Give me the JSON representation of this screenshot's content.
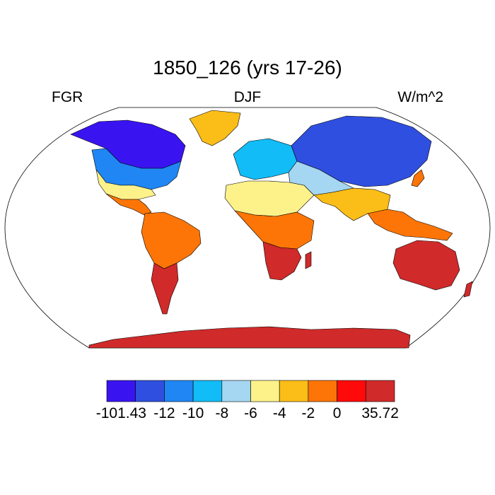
{
  "title": "1850_126 (yrs 17-26)",
  "left_label": "FGR",
  "center_label": "DJF",
  "right_label": "W/m^2",
  "colorbar": {
    "colors": [
      "#3a14f0",
      "#2f4fe0",
      "#1f86f4",
      "#12bcf6",
      "#a5d6f2",
      "#fdf28a",
      "#fbbd17",
      "#fd7506",
      "#fe0a0a",
      "#d02a2a"
    ],
    "labels": [
      "-101.43",
      "-12",
      "-10",
      "-8",
      "-6",
      "-4",
      "-2",
      "0",
      "35.72"
    ]
  },
  "regions": [
    {
      "name": "greenland",
      "color": "#fbbd17"
    },
    {
      "name": "north-america-north",
      "color": "#3a14f0"
    },
    {
      "name": "north-america-mid",
      "color": "#1f86f4"
    },
    {
      "name": "north-america-south",
      "color": "#fdf28a"
    },
    {
      "name": "central-america",
      "color": "#fd7506"
    },
    {
      "name": "south-america",
      "color": "#fd7506"
    },
    {
      "name": "south-america-south",
      "color": "#d02a2a"
    },
    {
      "name": "europe",
      "color": "#12bcf6"
    },
    {
      "name": "north-africa",
      "color": "#fdf28a"
    },
    {
      "name": "central-africa",
      "color": "#fd7506"
    },
    {
      "name": "southern-africa",
      "color": "#d02a2a"
    },
    {
      "name": "siberia",
      "color": "#2f4fe0"
    },
    {
      "name": "central-asia",
      "color": "#a5d6f2"
    },
    {
      "name": "south-asia",
      "color": "#fbbd17"
    },
    {
      "name": "southeast-asia",
      "color": "#fd7506"
    },
    {
      "name": "australia",
      "color": "#d02a2a"
    },
    {
      "name": "antarctica",
      "color": "#d02a2a"
    }
  ]
}
